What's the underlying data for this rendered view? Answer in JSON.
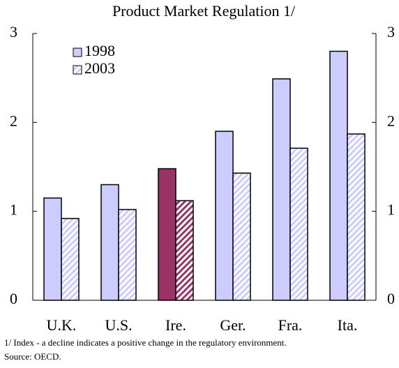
{
  "chart_data": {
    "type": "bar",
    "title": "Product Market Regulation 1/",
    "categories": [
      "U.K.",
      "U.S.",
      "Ire.",
      "Ger.",
      "Fra.",
      "Ita."
    ],
    "series": [
      {
        "name": "1998",
        "color": "#ccccff",
        "hatch": false,
        "colors": [
          "#ccccff",
          "#ccccff",
          "#993366",
          "#ccccff",
          "#ccccff",
          "#ccccff"
        ],
        "values": [
          1.15,
          1.3,
          1.48,
          1.9,
          2.49,
          2.8
        ]
      },
      {
        "name": "2003",
        "color": "#ccccff",
        "hatch": true,
        "colors": [
          "#ccccff",
          "#ccccff",
          "#993366",
          "#ccccff",
          "#ccccff",
          "#ccccff"
        ],
        "values": [
          0.92,
          1.02,
          1.12,
          1.43,
          1.71,
          1.87
        ]
      }
    ],
    "ylim": [
      0,
      3
    ],
    "yticks": [
      0,
      1,
      2,
      3
    ],
    "y2lim": [
      0,
      3
    ],
    "y2ticks": [
      0,
      1,
      2,
      3
    ],
    "grid": false,
    "legend": "top-left",
    "notes": [
      "1/ Index - a decline indicates a positive change in the regulatory environment.",
      "Source: OECD."
    ]
  }
}
